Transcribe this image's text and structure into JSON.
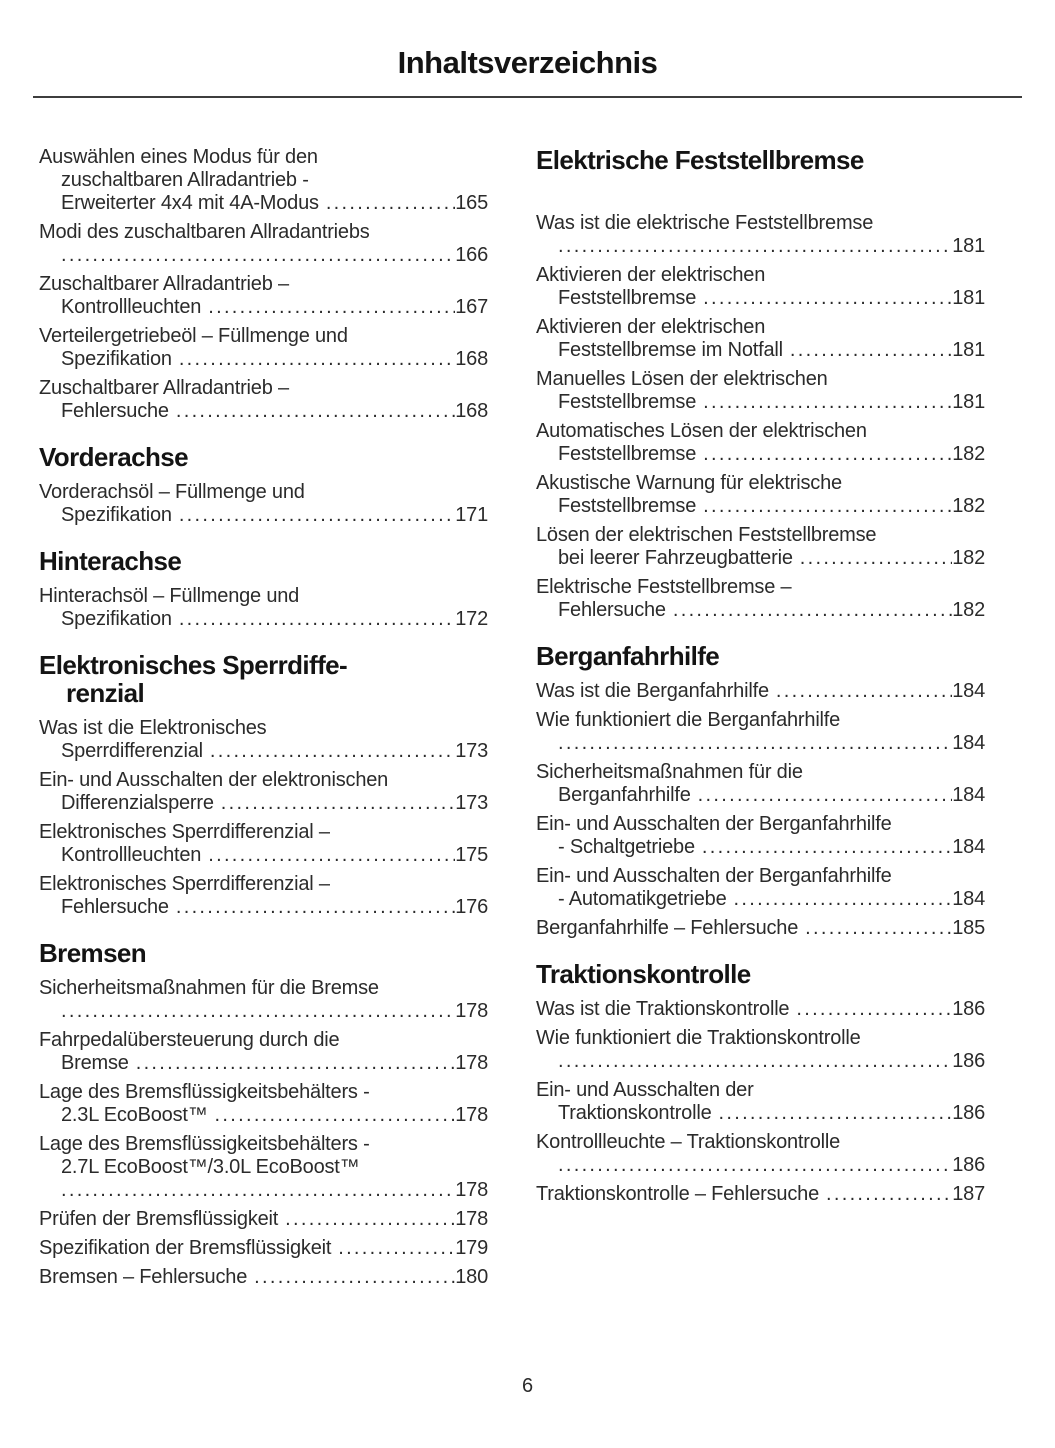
{
  "title": "Inhaltsverzeichnis",
  "page_number": "6",
  "colors": {
    "background": "#ffffff",
    "text": "#2b2b2b",
    "heading": "#141414",
    "rule": "#3d3d3d"
  },
  "columns": [
    {
      "sections": [
        {
          "heading": null,
          "entries": [
            {
              "lines": [
                "Auswählen eines Modus für den",
                "zuschaltbaren Allradantrieb -",
                "Erweiterter 4x4 mit 4A-Modus"
              ],
              "page": "165"
            },
            {
              "lines": [
                "Modi des zuschaltbaren Allradantriebs"
              ],
              "page": "166",
              "leader_own_line": true
            },
            {
              "lines": [
                "Zuschaltbarer Allradantrieb –",
                "Kontrollleuchten"
              ],
              "page": "167"
            },
            {
              "lines": [
                "Verteilergetriebeöl – Füllmenge und",
                "Spezifikation"
              ],
              "page": "168"
            },
            {
              "lines": [
                "Zuschaltbarer Allradantrieb –",
                "Fehlersuche"
              ],
              "page": "168"
            }
          ]
        },
        {
          "heading": [
            "Vorderachse"
          ],
          "entries": [
            {
              "lines": [
                "Vorderachsöl – Füllmenge und",
                "Spezifikation"
              ],
              "page": "171"
            }
          ]
        },
        {
          "heading": [
            "Hinterachse"
          ],
          "entries": [
            {
              "lines": [
                "Hinterachsöl – Füllmenge und",
                "Spezifikation"
              ],
              "page": "172"
            }
          ]
        },
        {
          "heading": [
            "Elektronisches Sperrdiffe-",
            "renzial"
          ],
          "entries": [
            {
              "lines": [
                "Was ist die Elektronisches",
                "Sperrdifferenzial"
              ],
              "page": "173"
            },
            {
              "lines": [
                "Ein- und Ausschalten der elektronischen",
                "Differenzialsperre"
              ],
              "page": "173"
            },
            {
              "lines": [
                "Elektronisches Sperrdifferenzial –",
                "Kontrollleuchten"
              ],
              "page": "175"
            },
            {
              "lines": [
                "Elektronisches Sperrdifferenzial –",
                "Fehlersuche"
              ],
              "page": "176"
            }
          ]
        },
        {
          "heading": [
            "Bremsen"
          ],
          "entries": [
            {
              "lines": [
                "Sicherheitsmaßnahmen für die Bremse"
              ],
              "page": "178",
              "leader_own_line": true
            },
            {
              "lines": [
                "Fahrpedalübersteuerung durch die",
                "Bremse"
              ],
              "page": "178"
            },
            {
              "lines": [
                "Lage des Bremsflüssigkeitsbehälters -",
                "2.3L EcoBoost™"
              ],
              "page": "178"
            },
            {
              "lines": [
                "Lage des Bremsflüssigkeitsbehälters -",
                "2.7L EcoBoost™/3.0L EcoBoost™"
              ],
              "page": "178",
              "leader_own_line": true
            },
            {
              "lines": [
                "Prüfen der Bremsflüssigkeit"
              ],
              "page": "178"
            },
            {
              "lines": [
                "Spezifikation der Bremsflüssigkeit"
              ],
              "page": "179"
            },
            {
              "lines": [
                "Bremsen – Fehlersuche"
              ],
              "page": "180"
            }
          ]
        }
      ]
    },
    {
      "sections": [
        {
          "heading": [
            "Elektrische Feststellbremse"
          ],
          "heading_gap": true,
          "entries": [
            {
              "lines": [
                "Was ist die elektrische Feststellbremse"
              ],
              "page": "181",
              "leader_own_line": true
            },
            {
              "lines": [
                "Aktivieren der elektrischen",
                "Feststellbremse"
              ],
              "page": "181"
            },
            {
              "lines": [
                "Aktivieren der elektrischen",
                "Feststellbremse im Notfall"
              ],
              "page": "181"
            },
            {
              "lines": [
                "Manuelles Lösen der elektrischen",
                "Feststellbremse"
              ],
              "page": "181"
            },
            {
              "lines": [
                "Automatisches Lösen der elektrischen",
                "Feststellbremse"
              ],
              "page": "182"
            },
            {
              "lines": [
                "Akustische Warnung für elektrische",
                "Feststellbremse"
              ],
              "page": "182"
            },
            {
              "lines": [
                "Lösen der elektrischen Feststellbremse",
                "bei leerer Fahrzeugbatterie"
              ],
              "page": "182"
            },
            {
              "lines": [
                "Elektrische Feststellbremse –",
                "Fehlersuche"
              ],
              "page": "182"
            }
          ]
        },
        {
          "heading": [
            "Berganfahrhilfe"
          ],
          "entries": [
            {
              "lines": [
                "Was ist die Berganfahrhilfe"
              ],
              "page": "184"
            },
            {
              "lines": [
                "Wie funktioniert die Berganfahrhilfe"
              ],
              "page": "184",
              "leader_own_line": true
            },
            {
              "lines": [
                "Sicherheitsmaßnahmen für die",
                "Berganfahrhilfe"
              ],
              "page": "184"
            },
            {
              "lines": [
                "Ein- und Ausschalten der Berganfahrhilfe",
                "- Schaltgetriebe"
              ],
              "page": "184"
            },
            {
              "lines": [
                "Ein- und Ausschalten der Berganfahrhilfe",
                "- Automatikgetriebe"
              ],
              "page": "184"
            },
            {
              "lines": [
                "Berganfahrhilfe – Fehlersuche"
              ],
              "page": "185"
            }
          ]
        },
        {
          "heading": [
            "Traktionskontrolle"
          ],
          "entries": [
            {
              "lines": [
                "Was ist die Traktionskontrolle"
              ],
              "page": "186"
            },
            {
              "lines": [
                "Wie funktioniert die Traktionskontrolle"
              ],
              "page": "186",
              "leader_own_line": true
            },
            {
              "lines": [
                "Ein- und Ausschalten der",
                "Traktionskontrolle"
              ],
              "page": "186"
            },
            {
              "lines": [
                "Kontrollleuchte – Traktionskontrolle"
              ],
              "page": "186",
              "leader_own_line": true
            },
            {
              "lines": [
                "Traktionskontrolle – Fehlersuche"
              ],
              "page": "187"
            }
          ]
        }
      ]
    }
  ]
}
